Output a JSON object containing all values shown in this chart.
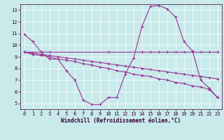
{
  "xlabel": "Windchill (Refroidissement éolien,°C)",
  "background_color": "#c8eaea",
  "line_color": "#993399",
  "grid_color": "#ffffff",
  "xlim": [
    -0.5,
    23.5
  ],
  "ylim": [
    4.5,
    13.5
  ],
  "yticks": [
    5,
    6,
    7,
    8,
    9,
    10,
    11,
    12,
    13
  ],
  "xticks": [
    0,
    1,
    2,
    3,
    4,
    5,
    6,
    7,
    8,
    9,
    10,
    11,
    12,
    13,
    14,
    15,
    16,
    17,
    18,
    19,
    20,
    21,
    22,
    23
  ],
  "line1_x": [
    0,
    1,
    2,
    3,
    4,
    5,
    6,
    7,
    8,
    9,
    10,
    11,
    12,
    13,
    14,
    15,
    16,
    17,
    18,
    19,
    20,
    21,
    22,
    23
  ],
  "line1_y": [
    10.9,
    10.3,
    9.4,
    8.8,
    8.8,
    7.8,
    7.0,
    5.3,
    4.9,
    4.9,
    5.5,
    5.5,
    7.5,
    8.9,
    11.6,
    13.3,
    13.4,
    13.1,
    12.4,
    10.3,
    9.5,
    7.0,
    6.3,
    5.5
  ],
  "line2_x": [
    0,
    2,
    3,
    10,
    14,
    15,
    16,
    17,
    18,
    19,
    20,
    21,
    22,
    23
  ],
  "line2_y": [
    9.4,
    9.4,
    9.4,
    9.4,
    9.4,
    9.4,
    9.4,
    9.4,
    9.4,
    9.4,
    9.4,
    9.4,
    9.4,
    9.4
  ],
  "line3_x": [
    0,
    1,
    2,
    3,
    4,
    5,
    6,
    7,
    8,
    9,
    10,
    11,
    12,
    13,
    14,
    15,
    16,
    17,
    18,
    19,
    20,
    21,
    22,
    23
  ],
  "line3_y": [
    9.4,
    9.3,
    9.2,
    9.1,
    9.0,
    8.9,
    8.8,
    8.7,
    8.6,
    8.5,
    8.4,
    8.3,
    8.2,
    8.1,
    8.0,
    7.9,
    7.8,
    7.7,
    7.6,
    7.5,
    7.4,
    7.3,
    7.2,
    7.1
  ],
  "line4_x": [
    0,
    1,
    2,
    3,
    4,
    5,
    6,
    7,
    8,
    9,
    10,
    11,
    12,
    13,
    14,
    15,
    16,
    17,
    18,
    19,
    20,
    21,
    22,
    23
  ],
  "line4_y": [
    9.4,
    9.2,
    9.1,
    9.0,
    8.8,
    8.7,
    8.6,
    8.4,
    8.3,
    8.1,
    8.0,
    7.8,
    7.7,
    7.5,
    7.4,
    7.3,
    7.1,
    7.0,
    6.8,
    6.7,
    6.5,
    6.4,
    6.2,
    5.5
  ]
}
